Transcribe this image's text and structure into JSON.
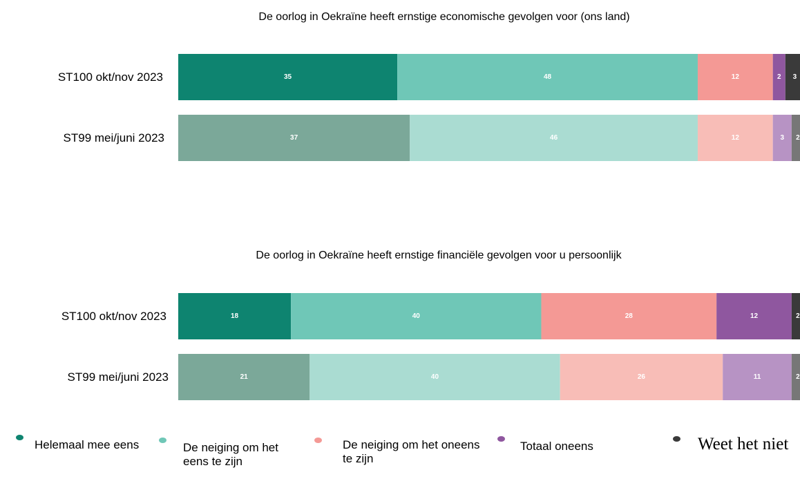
{
  "chart_data": [
    {
      "type": "stacked-bar-horizontal",
      "title": "De oorlog in Oekraïne heeft ernstige economische gevolgen voor (ons land)",
      "categories": [
        "ST100 okt/nov 2023",
        "ST99 mei/juni 2023"
      ],
      "series": [
        {
          "name": "Helemaal mee eens",
          "colors": [
            "#0e8470",
            "#7ba899"
          ],
          "values": [
            35,
            37
          ]
        },
        {
          "name": "De neiging om het eens te zijn",
          "colors": [
            "#6fc7b7",
            "#aadcd2"
          ],
          "values": [
            48,
            46
          ]
        },
        {
          "name": "De neiging om het oneens te zijn",
          "colors": [
            "#f49995",
            "#f8bdb7"
          ],
          "values": [
            12,
            12
          ]
        },
        {
          "name": "Totaal oneens",
          "colors": [
            "#8f579f",
            "#b793c4"
          ],
          "values": [
            2,
            3
          ]
        },
        {
          "name": "Weet het niet",
          "colors": [
            "#3a3a3a",
            "#777777"
          ],
          "values": [
            3,
            2
          ]
        }
      ]
    },
    {
      "type": "stacked-bar-horizontal",
      "title": "De oorlog in Oekraïne heeft ernstige financiële gevolgen voor u persoonlijk",
      "categories": [
        "ST100 okt/nov 2023",
        "ST99 mei/juni 2023"
      ],
      "series": [
        {
          "colors": [
            "#0e8470",
            "#7ba899"
          ],
          "values": [
            18,
            21
          ]
        },
        {
          "colors": [
            "#6fc7b7",
            "#aadcd2"
          ],
          "values": [
            40,
            40
          ]
        },
        {
          "colors": [
            "#f49995",
            "#f8bdb7"
          ],
          "values": [
            28,
            26
          ]
        },
        {
          "colors": [
            "#8f579f",
            "#b793c4"
          ],
          "values": [
            12,
            11
          ]
        },
        {
          "colors": [
            "#3a3a3a",
            "#777777"
          ],
          "values": [
            2,
            2
          ]
        }
      ]
    }
  ]
}
